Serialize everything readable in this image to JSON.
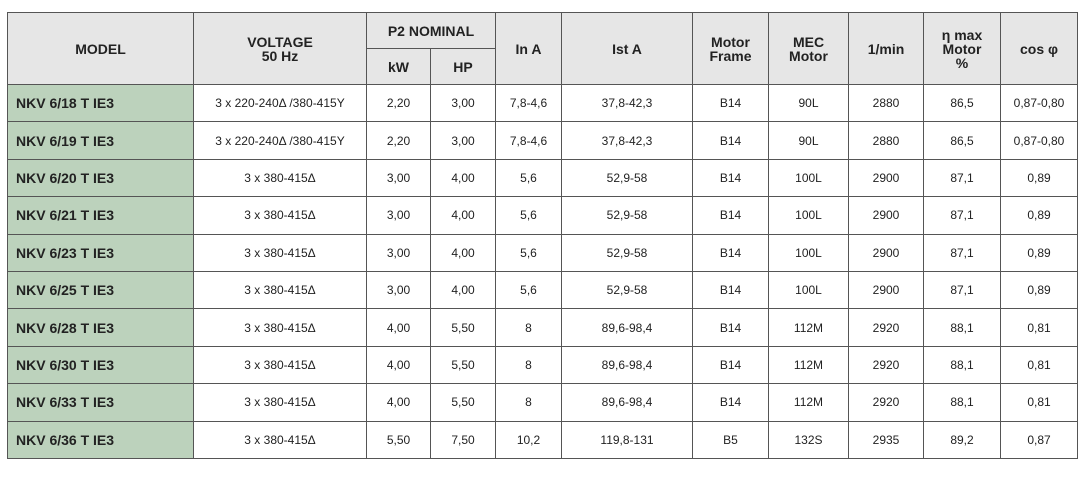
{
  "header": {
    "model": "MODEL",
    "voltage": [
      "VOLTAGE",
      "50 Hz"
    ],
    "p2": "P2 NOMINAL",
    "kw": "kW",
    "hp": "HP",
    "in": "In A",
    "ist": "Ist A",
    "frame": [
      "Motor",
      "Frame"
    ],
    "mec": [
      "MEC",
      "Motor"
    ],
    "rpm": "1/min",
    "eta": [
      "η max",
      "Motor",
      "%"
    ],
    "cos": "cos φ"
  },
  "table": {
    "rows": [
      [
        "NKV 6/18 T IE3",
        "3 x 220-240Δ /380-415Y",
        "2,20",
        "3,00",
        "7,8-4,6",
        "37,8-42,3",
        "B14",
        "90L",
        "2880",
        "86,5",
        "0,87-0,80"
      ],
      [
        "NKV 6/19 T IE3",
        "3 x 220-240Δ /380-415Y",
        "2,20",
        "3,00",
        "7,8-4,6",
        "37,8-42,3",
        "B14",
        "90L",
        "2880",
        "86,5",
        "0,87-0,80"
      ],
      [
        "NKV 6/20 T IE3",
        "3 x 380-415Δ",
        "3,00",
        "4,00",
        "5,6",
        "52,9-58",
        "B14",
        "100L",
        "2900",
        "87,1",
        "0,89"
      ],
      [
        "NKV 6/21 T IE3",
        "3 x 380-415Δ",
        "3,00",
        "4,00",
        "5,6",
        "52,9-58",
        "B14",
        "100L",
        "2900",
        "87,1",
        "0,89"
      ],
      [
        "NKV 6/23 T IE3",
        "3 x 380-415Δ",
        "3,00",
        "4,00",
        "5,6",
        "52,9-58",
        "B14",
        "100L",
        "2900",
        "87,1",
        "0,89"
      ],
      [
        "NKV 6/25 T IE3",
        "3 x 380-415Δ",
        "3,00",
        "4,00",
        "5,6",
        "52,9-58",
        "B14",
        "100L",
        "2900",
        "87,1",
        "0,89"
      ],
      [
        "NKV 6/28 T IE3",
        "3 x 380-415Δ",
        "4,00",
        "5,50",
        "8",
        "89,6-98,4",
        "B14",
        "112M",
        "2920",
        "88,1",
        "0,81"
      ],
      [
        "NKV 6/30 T IE3",
        "3 x 380-415Δ",
        "4,00",
        "5,50",
        "8",
        "89,6-98,4",
        "B14",
        "112M",
        "2920",
        "88,1",
        "0,81"
      ],
      [
        "NKV 6/33 T IE3",
        "3 x 380-415Δ",
        "4,00",
        "5,50",
        "8",
        "89,6-98,4",
        "B14",
        "112M",
        "2920",
        "88,1",
        "0,81"
      ],
      [
        "NKV 6/36 T IE3",
        "3 x 380-415Δ",
        "5,50",
        "7,50",
        "10,2",
        "119,8-131",
        "B5",
        "132S",
        "2935",
        "89,2",
        "0,87"
      ]
    ]
  }
}
